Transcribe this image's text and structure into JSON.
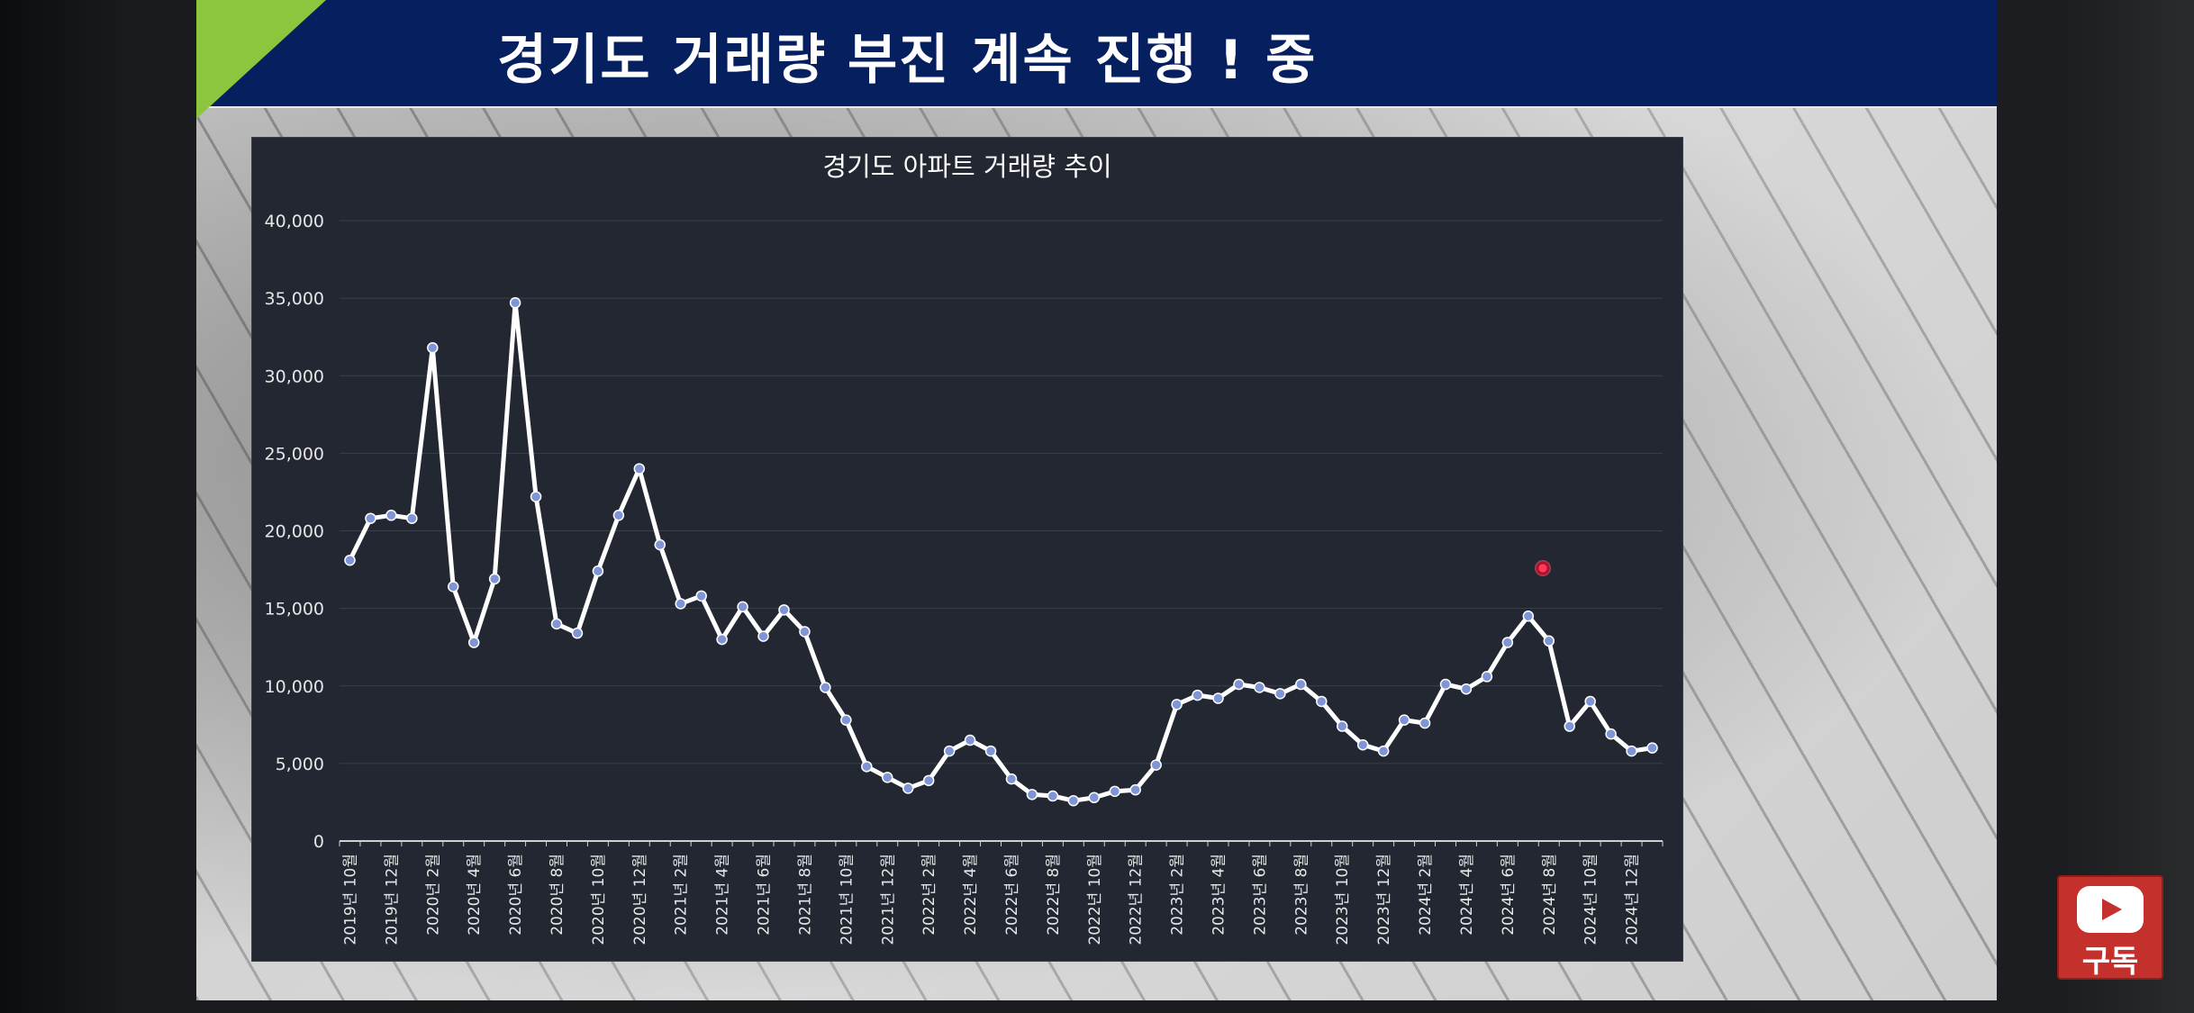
{
  "slide": {
    "title": "경기도 거래량  부진 계속 진행 ! 중"
  },
  "subscribe": {
    "label": "구독",
    "icon": "youtube-play-icon",
    "color": "#c4302b"
  },
  "colors": {
    "title_bar": "#061f5e",
    "accent_green": "#8cc63f",
    "chart_bg": "#222731",
    "line": "#ffffff",
    "marker": "#7f95d6"
  },
  "chart_data": {
    "type": "line",
    "title": "경기도 아파트 거래량  추이",
    "xlabel": "",
    "ylabel": "",
    "ylim": [
      0,
      40000
    ],
    "yticks": [
      "0",
      "5,000",
      "10,000",
      "15,000",
      "20,000",
      "25,000",
      "30,000",
      "35,000",
      "40,000"
    ],
    "grid": true,
    "legend": "none",
    "x": [
      "2019년 10월",
      "2019년 11월",
      "2019년 12월",
      "2020년 1월",
      "2020년 2월",
      "2020년 3월",
      "2020년 4월",
      "2020년 5월",
      "2020년 6월",
      "2020년 7월",
      "2020년 8월",
      "2020년 9월",
      "2020년 10월",
      "2020년 11월",
      "2020년 12월",
      "2021년 1월",
      "2021년 2월",
      "2021년 3월",
      "2021년 4월",
      "2021년 5월",
      "2021년 6월",
      "2021년 7월",
      "2021년 8월",
      "2021년 9월",
      "2021년 10월",
      "2021년 11월",
      "2021년 12월",
      "2022년 1월",
      "2022년 2월",
      "2022년 3월",
      "2022년 4월",
      "2022년 5월",
      "2022년 6월",
      "2022년 7월",
      "2022년 8월",
      "2022년 9월",
      "2022년 10월",
      "2022년 11월",
      "2022년 12월",
      "2023년 1월",
      "2023년 2월",
      "2023년 3월",
      "2023년 4월",
      "2023년 5월",
      "2023년 6월",
      "2023년 7월",
      "2023년 8월",
      "2023년 9월",
      "2023년 10월",
      "2023년 11월",
      "2023년 12월",
      "2024년 1월",
      "2024년 2월",
      "2024년 3월",
      "2024년 4월",
      "2024년 5월",
      "2024년 6월",
      "2024년 7월",
      "2024년 8월",
      "2024년 9월",
      "2024년 10월",
      "2024년 11월",
      "2024년 12월",
      "2025년 1월"
    ],
    "x_tick_labels": [
      "2019년 10월",
      "2019년 12월",
      "2020년 2월",
      "2020년 4월",
      "2020년 6월",
      "2020년 8월",
      "2020년 10월",
      "2020년 12월",
      "2021년 2월",
      "2021년 4월",
      "2021년 6월",
      "2021년 8월",
      "2021년 10월",
      "2021년 12월",
      "2022년 2월",
      "2022년 4월",
      "2022년 6월",
      "2022년 8월",
      "2022년 10월",
      "2022년 12월",
      "2023년 2월",
      "2023년 4월",
      "2023년 6월",
      "2023년 8월",
      "2023년 10월",
      "2023년 12월",
      "2024년 2월",
      "2024년 4월",
      "2024년 6월",
      "2024년 8월",
      "2024년 10월",
      "2024년 12월"
    ],
    "series": [
      {
        "values": [
          18100,
          20800,
          21000,
          20800,
          31800,
          16400,
          12800,
          16900,
          34700,
          22200,
          14000,
          13400,
          17400,
          21000,
          24000,
          19100,
          15300,
          15800,
          13000,
          15100,
          13200,
          14900,
          13500,
          9900,
          7800,
          4800,
          4100,
          3400,
          3900,
          5800,
          6500,
          5800,
          4000,
          3000,
          2900,
          2600,
          2800,
          3200,
          3300,
          4900,
          8800,
          9400,
          9200,
          10100,
          9900,
          9500,
          10100,
          9000,
          7400,
          6200,
          5800,
          7800,
          7600,
          10100,
          9800,
          10600,
          12800,
          14500,
          12900,
          7400,
          9000,
          6900,
          5800,
          6000
        ]
      }
    ]
  }
}
